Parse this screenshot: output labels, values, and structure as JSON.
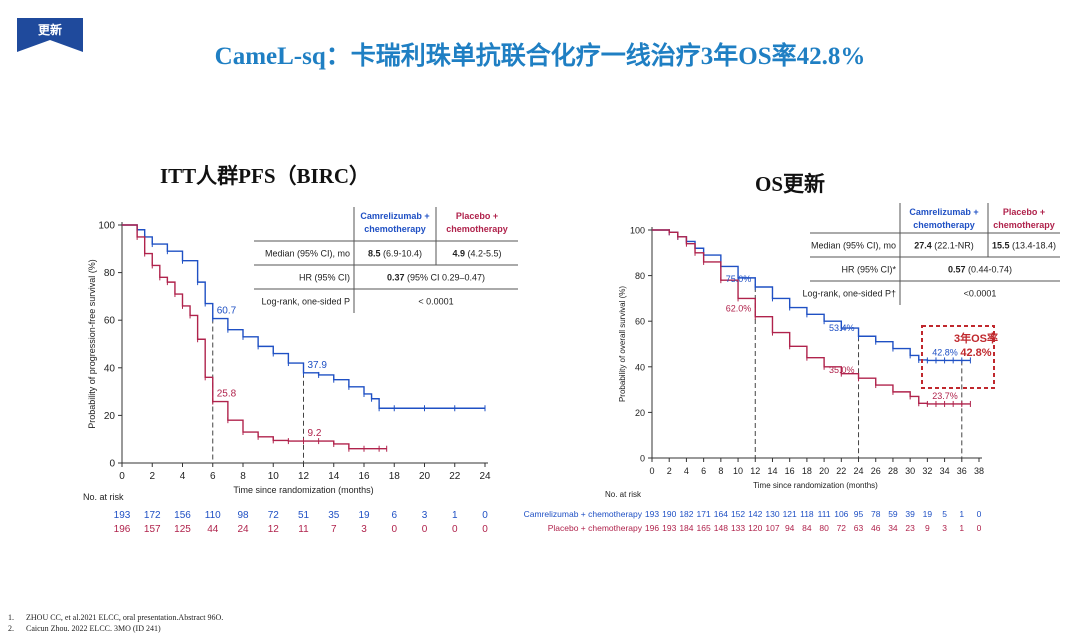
{
  "tag": "更新",
  "title": "CameL-sq：卡瑞利珠单抗联合化疗一线治疗3年OS率42.8%",
  "colors": {
    "blue": "#1f50c4",
    "red": "#b0234c",
    "title": "#1f7fc3",
    "tag": "#1f4a9c",
    "highlight": "#c0282d"
  },
  "references": [
    {
      "num": "1.",
      "text": "ZHOU CC, et al.2021 ELCC, oral presentation.Abstract 96O."
    },
    {
      "num": "2.",
      "text": "Caicun Zhou. 2022 ELCC. 3MO (ID 241)"
    }
  ],
  "chart_data": [
    {
      "type": "line",
      "title": "ITT人群PFS（BIRC）",
      "xlabel": "Time since randomization (months)",
      "ylabel": "Probability of progression-free survival (%)",
      "xlim": [
        0,
        24
      ],
      "ylim": [
        0,
        100
      ],
      "xticks": [
        0,
        2,
        4,
        6,
        8,
        10,
        12,
        14,
        16,
        18,
        20,
        22,
        24
      ],
      "yticks": [
        0,
        20,
        40,
        60,
        80,
        100
      ],
      "series": [
        {
          "name": "Camrelizumab + chemotherapy",
          "color": "#1f50c4",
          "x": [
            0,
            1,
            1.5,
            2,
            3,
            4,
            5,
            5.5,
            6,
            7,
            8,
            9,
            10,
            11,
            12,
            13,
            14,
            15,
            16,
            16.5,
            17,
            18,
            20,
            22,
            24
          ],
          "y": [
            100,
            98,
            95,
            92,
            89,
            85,
            76,
            67,
            60.7,
            56,
            53,
            49,
            46,
            42,
            37.9,
            37,
            35,
            32,
            29,
            27,
            23,
            23,
            23,
            23,
            23
          ]
        },
        {
          "name": "Placebo + chemotherapy",
          "color": "#b0234c",
          "x": [
            0,
            1,
            1.5,
            2,
            2.5,
            3,
            3.5,
            4,
            4.5,
            5,
            5.5,
            6,
            7,
            8,
            9,
            10,
            11,
            12,
            13,
            14,
            15,
            16,
            17,
            17.5
          ],
          "y": [
            100,
            95,
            88,
            83,
            78,
            76,
            71,
            66,
            62,
            52,
            36,
            25.8,
            18,
            13,
            11,
            9.5,
            9.2,
            9.2,
            9.2,
            8,
            6,
            6,
            6,
            6
          ]
        }
      ],
      "annotations": [
        {
          "x": 6,
          "y": 60.7,
          "label": "60.7",
          "color": "#1f50c4"
        },
        {
          "x": 12,
          "y": 37.9,
          "label": "37.9",
          "color": "#1f50c4"
        },
        {
          "x": 6,
          "y": 25.8,
          "label": "25.8",
          "color": "#b0234c"
        },
        {
          "x": 12,
          "y": 9.2,
          "label": "9.2",
          "color": "#b0234c"
        }
      ],
      "table": {
        "col_headers": [
          "Camrelizumab + chemotherapy",
          "Placebo + chemotherapy"
        ],
        "rows": [
          {
            "label": "Median (95% CI), mo",
            "c1_bold": "8.5",
            "c1": " (6.9-10.4)",
            "c2_bold": "4.9",
            "c2": " (4.2-5.5)"
          },
          {
            "label": "HR (95% CI)",
            "merged_bold": "0.37",
            "merged": " (95% CI 0.29–0.47)"
          },
          {
            "label": "Log-rank, one-sided P",
            "merged_bold": "",
            "merged": "< 0.0001"
          }
        ]
      },
      "at_risk": {
        "label": "No. at risk",
        "rows": [
          {
            "color": "#1f50c4",
            "values": [
              "193",
              "172",
              "156",
              "110",
              "98",
              "72",
              "51",
              "35",
              "19",
              "6",
              "3",
              "1",
              "0"
            ]
          },
          {
            "color": "#b0234c",
            "values": [
              "196",
              "157",
              "125",
              "44",
              "24",
              "12",
              "11",
              "7",
              "3",
              "0",
              "0",
              "0",
              "0"
            ]
          }
        ]
      }
    },
    {
      "type": "line",
      "title": "OS更新",
      "xlabel": "Time since randomization (months)",
      "ylabel": "Probability of overall survival (%)",
      "xlim": [
        0,
        38
      ],
      "ylim": [
        0,
        100
      ],
      "xticks": [
        0,
        2,
        4,
        6,
        8,
        10,
        12,
        14,
        16,
        18,
        20,
        22,
        24,
        26,
        28,
        30,
        32,
        34,
        36,
        38
      ],
      "yticks": [
        0,
        20,
        40,
        60,
        80,
        100
      ],
      "series": [
        {
          "name": "Camrelizumab + chemotherapy",
          "color": "#1f50c4",
          "x": [
            0,
            2,
            3,
            4,
            5,
            6,
            8,
            10,
            12,
            14,
            16,
            18,
            20,
            22,
            24,
            26,
            28,
            30,
            31,
            32,
            33,
            34,
            35,
            36,
            37
          ],
          "y": [
            100,
            99,
            97,
            95,
            92,
            89,
            84,
            79,
            75,
            70,
            66,
            63,
            60,
            57,
            53.4,
            51,
            48,
            45,
            43,
            42.8,
            42.8,
            42.8,
            42.8,
            42.8,
            42.8
          ]
        },
        {
          "name": "Placebo + chemotherapy",
          "color": "#b0234c",
          "x": [
            0,
            2,
            3,
            4,
            5,
            6,
            8,
            10,
            12,
            14,
            16,
            18,
            20,
            22,
            24,
            26,
            28,
            30,
            31,
            32,
            33,
            34,
            35,
            36,
            37
          ],
          "y": [
            100,
            99,
            97,
            94,
            90,
            86,
            78,
            70,
            62,
            55,
            49,
            44,
            40,
            37,
            35,
            32,
            29,
            27,
            24,
            23.7,
            23.7,
            23.7,
            23.7,
            23.7,
            23.7
          ]
        }
      ],
      "annotations": [
        {
          "x": 12,
          "y": 75,
          "label": "75.0%",
          "color": "#1f50c4"
        },
        {
          "x": 24,
          "y": 53.4,
          "label": "53.4%",
          "color": "#1f50c4"
        },
        {
          "x": 36,
          "y": 42.8,
          "label": "42.8%",
          "color": "#1f50c4"
        },
        {
          "x": 12,
          "y": 62,
          "label": "62.0%",
          "color": "#b0234c"
        },
        {
          "x": 24,
          "y": 35,
          "label": "35.0%",
          "color": "#b0234c"
        },
        {
          "x": 36,
          "y": 23.7,
          "label": "23.7%",
          "color": "#b0234c"
        }
      ],
      "highlight": {
        "line1": "3年OS率",
        "line2": "42.8%"
      },
      "table": {
        "col_headers": [
          "Camrelizumab + chemotherapy",
          "Placebo + chemotherapy"
        ],
        "rows": [
          {
            "label": "Median (95% CI), mo",
            "c1_bold": "27.4",
            "c1": " (22.1-NR)",
            "c2_bold": "15.5",
            "c2": " (13.4-18.4)"
          },
          {
            "label": "HR (95% CI)*",
            "merged_bold": "0.57",
            "merged": " (0.44-0.74)"
          },
          {
            "label": "Log-rank, one-sided P†",
            "merged_bold": "",
            "merged": "<0.0001"
          }
        ]
      },
      "at_risk": {
        "label": "No. at risk",
        "rows": [
          {
            "label": "Camrelizumab + chemotherapy",
            "color": "#1f50c4",
            "values": [
              "193",
              "190",
              "182",
              "171",
              "164",
              "152",
              "142",
              "130",
              "121",
              "118",
              "111",
              "106",
              "95",
              "78",
              "59",
              "39",
              "19",
              "5",
              "1",
              "0"
            ]
          },
          {
            "label": "Placebo + chemotherapy",
            "color": "#b0234c",
            "values": [
              "196",
              "193",
              "184",
              "165",
              "148",
              "133",
              "120",
              "107",
              "94",
              "84",
              "80",
              "72",
              "63",
              "46",
              "34",
              "23",
              "9",
              "3",
              "1",
              "0"
            ]
          }
        ]
      }
    }
  ]
}
